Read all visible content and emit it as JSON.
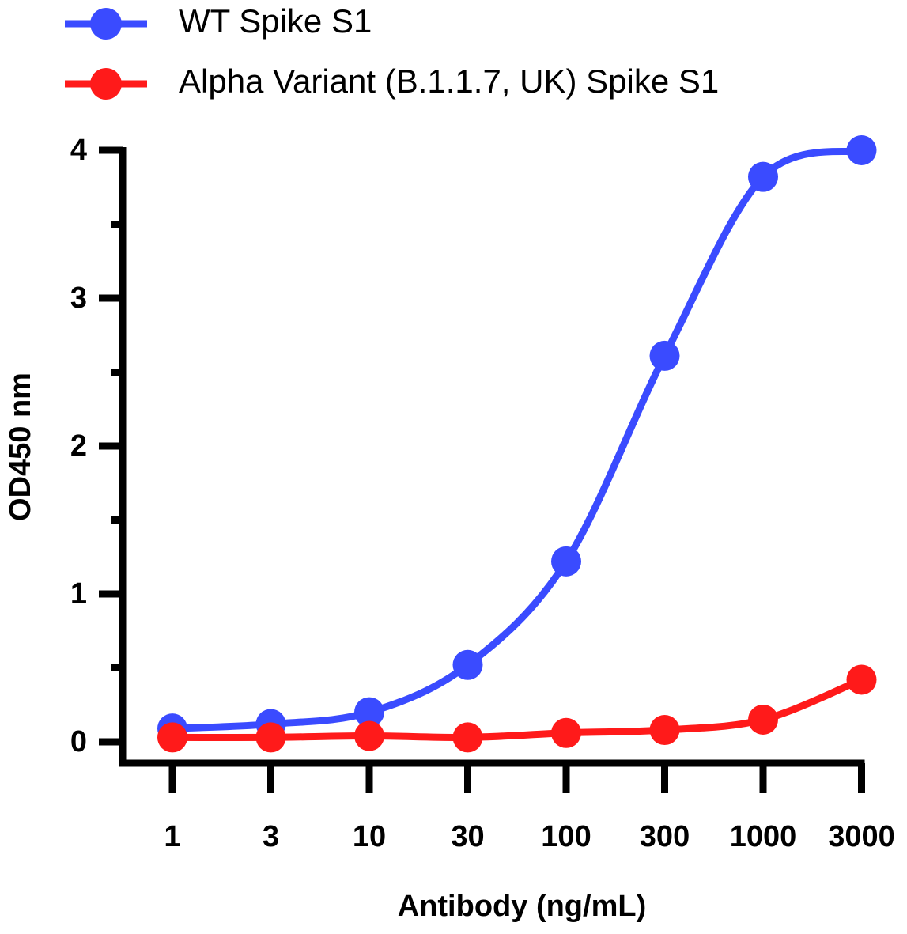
{
  "chart_data": {
    "type": "line",
    "xlabel": "Antibody (ng/mL)",
    "ylabel": "OD450 nm",
    "categories": [
      "1",
      "3",
      "10",
      "30",
      "100",
      "300",
      "1000",
      "3000"
    ],
    "series": [
      {
        "name": "WT Spike S1",
        "color": "#3a4bff",
        "values": [
          0.09,
          0.12,
          0.2,
          0.52,
          1.22,
          2.61,
          3.82,
          4.0
        ]
      },
      {
        "name": "Alpha Variant (B.1.1.7, UK) Spike S1",
        "color": "#ff1a1a",
        "values": [
          0.03,
          0.03,
          0.04,
          0.03,
          0.06,
          0.08,
          0.15,
          0.42
        ]
      }
    ],
    "ylim": [
      0,
      4
    ],
    "yticks": [
      0,
      1,
      2,
      3,
      4
    ]
  }
}
